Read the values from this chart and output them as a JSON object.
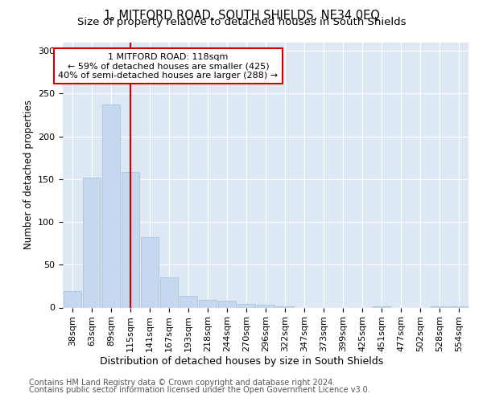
{
  "title": "1, MITFORD ROAD, SOUTH SHIELDS, NE34 0EQ",
  "subtitle": "Size of property relative to detached houses in South Shields",
  "xlabel": "Distribution of detached houses by size in South Shields",
  "ylabel": "Number of detached properties",
  "footer1": "Contains HM Land Registry data © Crown copyright and database right 2024.",
  "footer2": "Contains public sector information licensed under the Open Government Licence v3.0.",
  "bar_labels": [
    "38sqm",
    "63sqm",
    "89sqm",
    "115sqm",
    "141sqm",
    "167sqm",
    "193sqm",
    "218sqm",
    "244sqm",
    "270sqm",
    "296sqm",
    "322sqm",
    "347sqm",
    "373sqm",
    "399sqm",
    "425sqm",
    "451sqm",
    "477sqm",
    "502sqm",
    "528sqm",
    "554sqm"
  ],
  "bar_values": [
    19,
    152,
    237,
    158,
    82,
    35,
    14,
    9,
    8,
    4,
    3,
    1,
    0,
    0,
    0,
    0,
    1,
    0,
    0,
    1,
    1
  ],
  "bar_color": "#c5d8f0",
  "bar_edge_color": "#a0bedd",
  "bg_color": "#dde8f5",
  "fig_color": "#ffffff",
  "grid_color": "#ffffff",
  "property_label": "1 MITFORD ROAD: 118sqm",
  "annotation_line1": "← 59% of detached houses are smaller (425)",
  "annotation_line2": "40% of semi-detached houses are larger (288) →",
  "annotation_box_color": "#ffffff",
  "annotation_border_color": "#cc0000",
  "vline_color": "#cc0000",
  "vline_x": 3.0,
  "ylim": [
    0,
    310
  ],
  "title_fontsize": 10.5,
  "subtitle_fontsize": 9.5,
  "xlabel_fontsize": 9,
  "ylabel_fontsize": 8.5,
  "tick_fontsize": 8,
  "annot_fontsize": 8,
  "footer_fontsize": 7
}
